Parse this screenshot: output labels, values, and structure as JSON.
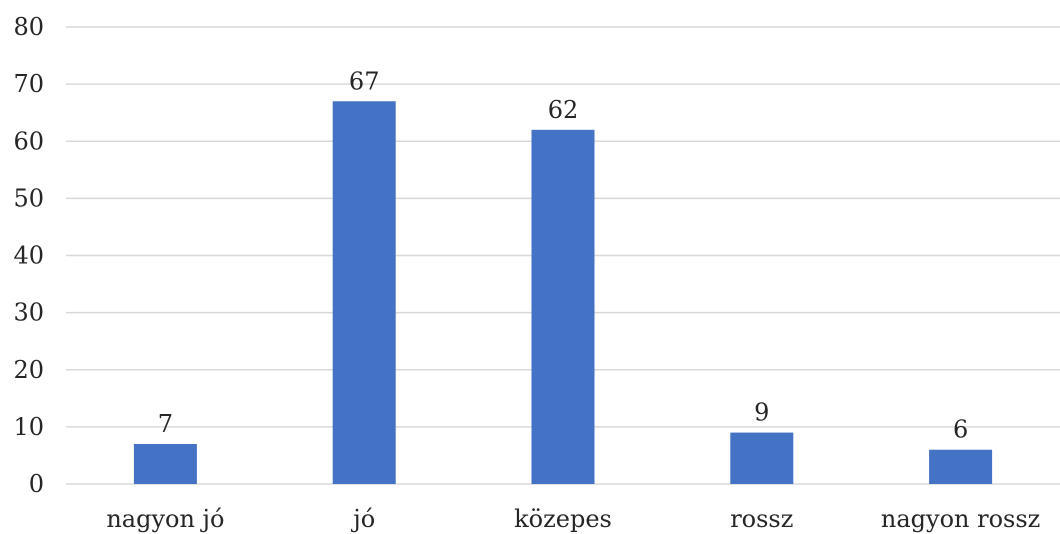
{
  "chart_data": {
    "type": "bar",
    "categories": [
      "nagyon jó",
      "jó",
      "közepes",
      "rossz",
      "nagyon rossz"
    ],
    "series": [
      {
        "values": [
          7,
          67,
          62,
          9,
          6
        ],
        "color": "#4472c4"
      }
    ],
    "ylim": [
      0,
      80
    ],
    "yticks": [
      0,
      10,
      20,
      30,
      40,
      50,
      60,
      70,
      80
    ],
    "grid": true,
    "data_labels": true
  }
}
